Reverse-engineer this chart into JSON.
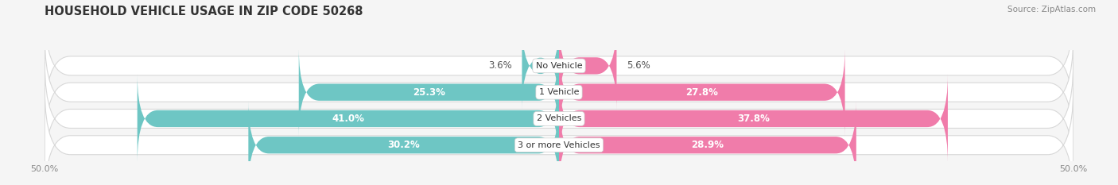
{
  "title": "HOUSEHOLD VEHICLE USAGE IN ZIP CODE 50268",
  "source": "Source: ZipAtlas.com",
  "categories": [
    "No Vehicle",
    "1 Vehicle",
    "2 Vehicles",
    "3 or more Vehicles"
  ],
  "owner_values": [
    3.6,
    25.3,
    41.0,
    30.2
  ],
  "renter_values": [
    5.6,
    27.8,
    37.8,
    28.9
  ],
  "owner_color": "#6ec6c4",
  "renter_color": "#f07caa",
  "background_color": "#f5f5f5",
  "bar_bg_color": "#e8e8e8",
  "bar_bg_edge_color": "#d8d8d8",
  "xlim_left": -50,
  "xlim_right": 50,
  "bar_height": 0.72,
  "title_fontsize": 10.5,
  "source_fontsize": 7.5,
  "value_fontsize": 8.5,
  "category_fontsize": 8,
  "tick_fontsize": 8,
  "legend_fontsize": 8.5
}
